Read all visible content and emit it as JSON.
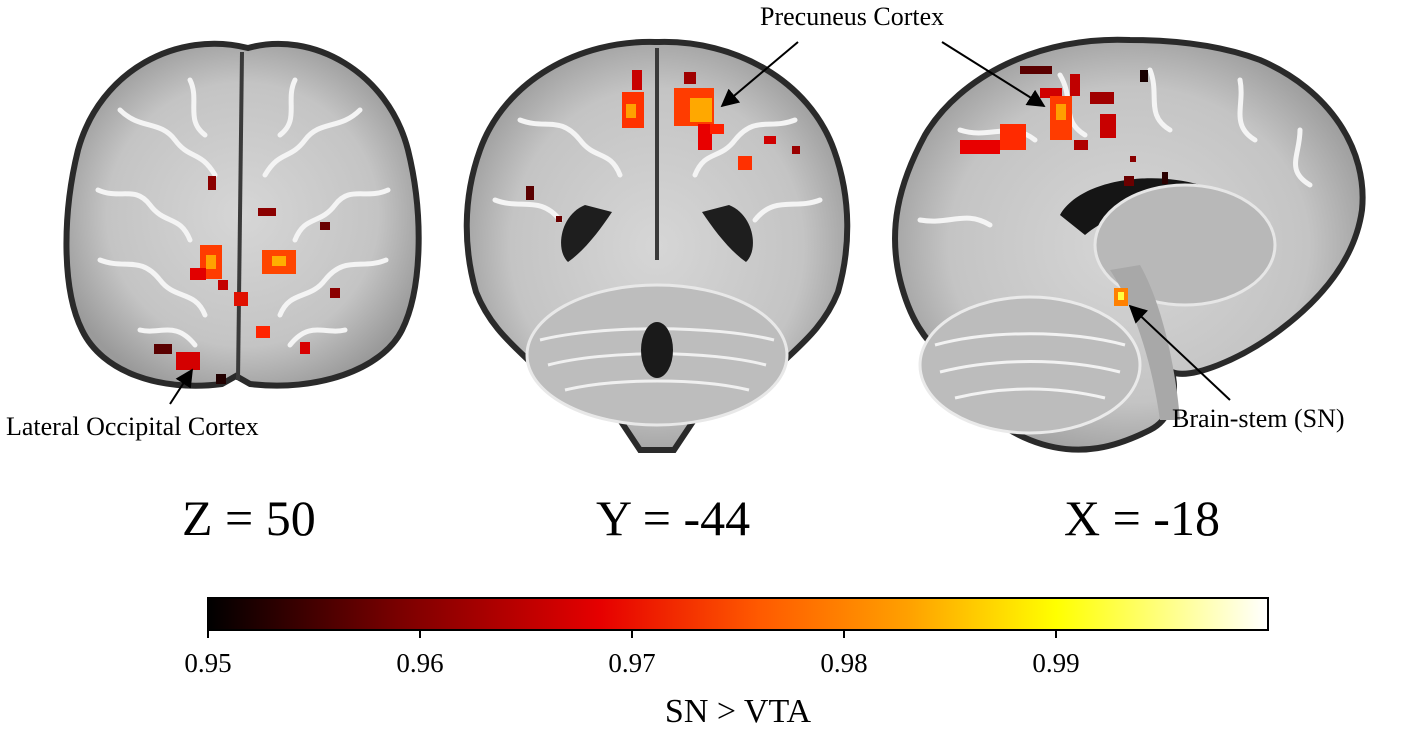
{
  "annotations": {
    "lateral_occipital": "Lateral Occipital Cortex",
    "precuneus": "Precuneus Cortex",
    "brainstem": "Brain-stem (SN)"
  },
  "slices": {
    "axial": "Z = 50",
    "coronal": "Y = -44",
    "sagittal": "X = -18"
  },
  "colorbar": {
    "title": "SN > VTA",
    "min": 0.95,
    "max": 1.0,
    "ticks": [
      "0.95",
      "0.96",
      "0.97",
      "0.98",
      "0.99"
    ],
    "colors": [
      "#000000",
      "#7a0000",
      "#e60000",
      "#ff5a00",
      "#ffa000",
      "#ffff00",
      "#ffffff"
    ]
  }
}
